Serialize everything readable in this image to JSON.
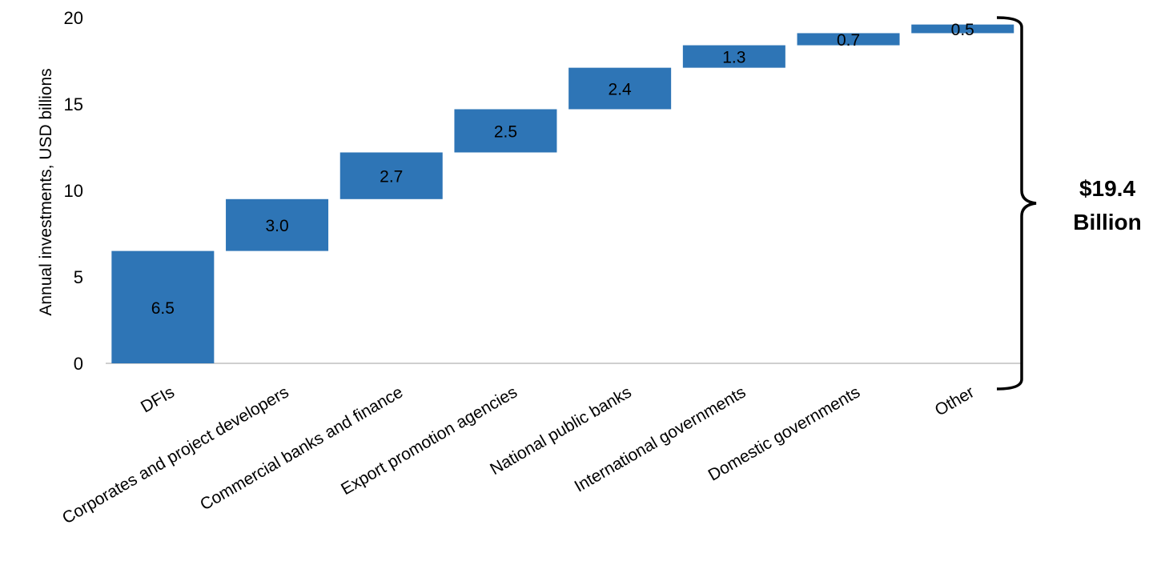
{
  "chart_data": {
    "type": "bar",
    "subtype": "waterfall",
    "ylabel": "Annual investments, USD billions",
    "ylim": [
      0,
      20
    ],
    "yticks": [
      0,
      5,
      10,
      15,
      20
    ],
    "grid": false,
    "bar_color": "#2E75B6",
    "categories": [
      "DFIs",
      "Corporates and project developers",
      "Commercial banks and finance",
      "Export promotion agencies",
      "National public banks",
      "International governments",
      "Domestic governments",
      "Other"
    ],
    "values": [
      6.5,
      3.0,
      2.7,
      2.5,
      2.4,
      1.3,
      0.7,
      0.5
    ],
    "value_labels": [
      "6.5",
      "3.0",
      "2.7",
      "2.5",
      "2.4",
      "1.3",
      "0.7",
      "0.5"
    ],
    "total_annotation": {
      "line1": "$19.4",
      "line2": "Billion"
    }
  }
}
